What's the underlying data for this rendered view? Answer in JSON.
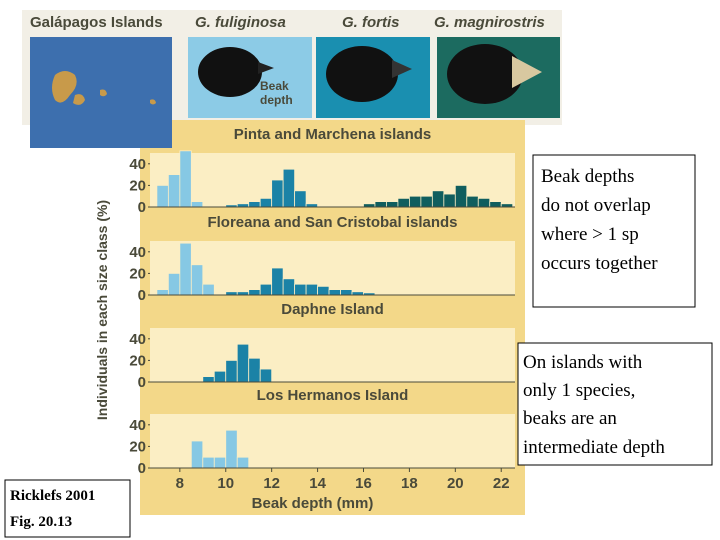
{
  "header": {
    "map_title": "Galápagos Islands",
    "species": [
      "G. fuliginosa",
      "G. fortis",
      "G. magnirostris"
    ],
    "beak_label": [
      "Beak",
      "depth"
    ]
  },
  "notes": {
    "overlap": [
      "Beak depths",
      "do not overlap",
      "where > 1 sp",
      "occurs together"
    ],
    "single": [
      "On islands with",
      "only 1 species,",
      "beaks are an",
      "intermediate depth"
    ],
    "reference": [
      "Ricklefs 2001",
      "Fig. 20.13"
    ]
  },
  "figure": {
    "ylabel": "Individuals in each size class (%)"
  },
  "chart_data": [
    {
      "type": "histogram",
      "title": "Pinta and Marchena islands",
      "bins": [
        7,
        7.5,
        8,
        8.5,
        9,
        9.5,
        10,
        10.5,
        11,
        11.5,
        12,
        12.5,
        13,
        13.5,
        14,
        14.5,
        15,
        15.5,
        16,
        16.5,
        17,
        17.5,
        18,
        18.5,
        19,
        19.5,
        20,
        20.5,
        21,
        21.5,
        22,
        22.5
      ],
      "series": [
        {
          "name": "G. fuliginosa",
          "color": "#86c8e4",
          "values": [
            20,
            30,
            52,
            5,
            null,
            null,
            null,
            null,
            null,
            null,
            null,
            null,
            null,
            null,
            null,
            null,
            null,
            null,
            null,
            null,
            null,
            null,
            null,
            null,
            null,
            null,
            null,
            null,
            null,
            null,
            null
          ]
        },
        {
          "name": "G. fortis",
          "color": "#1b82a6",
          "values": [
            null,
            null,
            null,
            null,
            null,
            null,
            2,
            3,
            5,
            8,
            25,
            35,
            15,
            3,
            null,
            null,
            null,
            null,
            null,
            null,
            null,
            null,
            null,
            null,
            null,
            null,
            null,
            null,
            null,
            null,
            null
          ]
        },
        {
          "name": "G. magnirostris",
          "color": "#105e5e",
          "values": [
            null,
            null,
            null,
            null,
            null,
            null,
            null,
            null,
            null,
            null,
            null,
            null,
            null,
            null,
            null,
            null,
            null,
            null,
            3,
            5,
            5,
            8,
            10,
            10,
            15,
            12,
            20,
            10,
            8,
            5,
            3
          ]
        }
      ],
      "xlim": [
        6.7,
        22.6
      ],
      "ylim": [
        0,
        50
      ],
      "yticks": [
        0,
        20,
        40
      ]
    },
    {
      "type": "histogram",
      "title": "Floreana and San Cristobal islands",
      "bins": [
        7,
        7.5,
        8,
        8.5,
        9,
        9.5,
        10,
        10.5,
        11,
        11.5,
        12,
        12.5,
        13,
        13.5,
        14,
        14.5,
        15,
        15.5,
        16,
        16.5,
        17
      ],
      "series": [
        {
          "name": "G. fuliginosa",
          "color": "#86c8e4",
          "values": [
            5,
            20,
            48,
            28,
            10,
            null,
            null,
            null,
            null,
            null,
            null,
            null,
            null,
            null,
            null,
            null,
            null,
            null,
            null,
            null
          ]
        },
        {
          "name": "G. fortis",
          "color": "#1b82a6",
          "values": [
            null,
            null,
            null,
            null,
            null,
            null,
            3,
            3,
            5,
            10,
            25,
            15,
            10,
            10,
            8,
            5,
            5,
            3,
            2,
            null
          ]
        }
      ],
      "xlim": [
        6.7,
        22.6
      ],
      "ylim": [
        0,
        50
      ],
      "yticks": [
        0,
        20,
        40
      ]
    },
    {
      "type": "histogram",
      "title": "Daphne Island",
      "bins": [
        9,
        9.5,
        10,
        10.5,
        11,
        11.5,
        12
      ],
      "series": [
        {
          "name": "G. fortis",
          "color": "#1b82a6",
          "values": [
            5,
            10,
            20,
            35,
            22,
            12
          ]
        }
      ],
      "xlim": [
        6.7,
        22.6
      ],
      "ylim": [
        0,
        50
      ],
      "yticks": [
        0,
        20,
        40
      ]
    },
    {
      "type": "histogram",
      "title": "Los Hermanos Island",
      "bins": [
        8.5,
        9,
        9.5,
        10,
        10.5,
        11
      ],
      "series": [
        {
          "name": "G. fuliginosa",
          "color": "#86c8e4",
          "values": [
            25,
            10,
            10,
            35,
            10
          ]
        }
      ],
      "xlim": [
        6.7,
        22.6
      ],
      "ylim": [
        0,
        50
      ],
      "yticks": [
        0,
        20,
        40
      ],
      "xticks": [
        8,
        10,
        12,
        14,
        16,
        18,
        20,
        22
      ],
      "xlabel": "Beak depth (mm)"
    }
  ]
}
